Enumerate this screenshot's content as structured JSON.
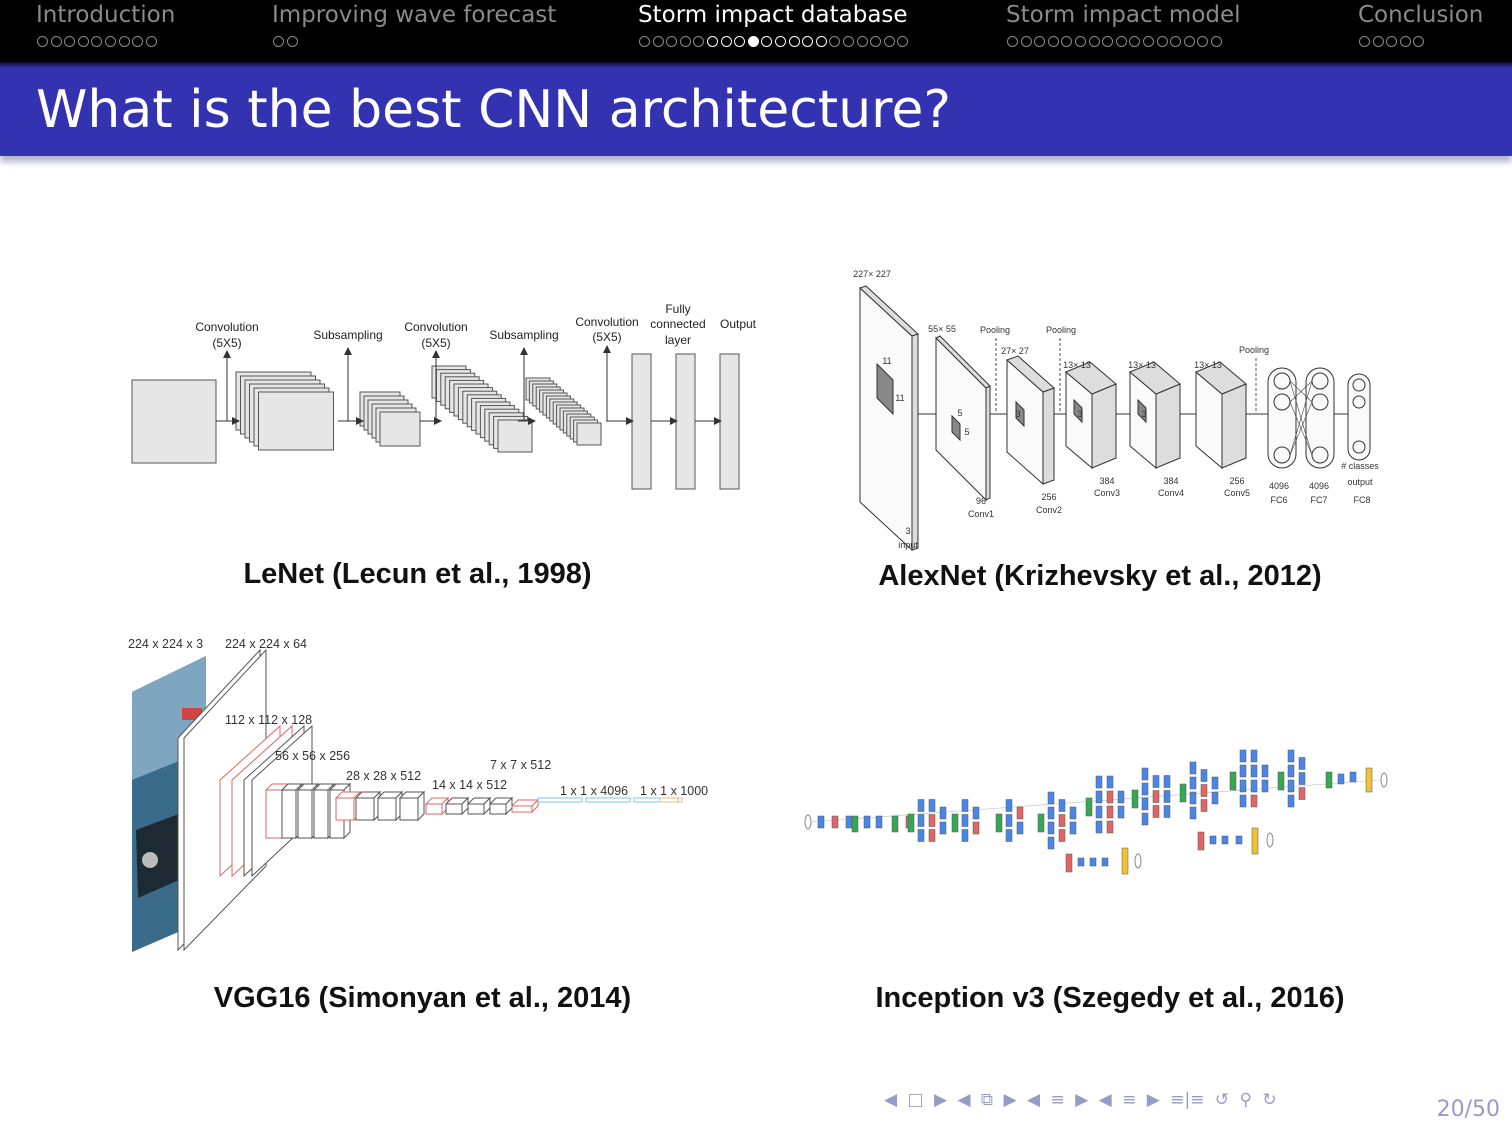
{
  "nav": {
    "sections": [
      {
        "title": "Introduction",
        "dots": 9,
        "filled": -1,
        "bright": 0,
        "active": false
      },
      {
        "title": "Improving wave forecast",
        "dots": 2,
        "filled": -1,
        "bright": 0,
        "active": false
      },
      {
        "title": "Storm impact database",
        "dots": 20,
        "filled": 8,
        "bright": 10,
        "active": true
      },
      {
        "title": "Storm impact model",
        "dots": 16,
        "filled": -1,
        "bright": 0,
        "active": false
      },
      {
        "title": "Conclusion",
        "dots": 5,
        "filled": -1,
        "bright": 0,
        "active": false
      }
    ]
  },
  "slide": {
    "title": "What is the best CNN architecture?",
    "page": "20/50"
  },
  "figures": {
    "lenet": {
      "caption": "LeNet (Lecun et al., 1998)",
      "labels": {
        "conv1a": "Convolution",
        "conv1b": "(5X5)",
        "sub1": "Subsampling",
        "conv2a": "Convolution",
        "conv2b": "(5X5)",
        "sub2": "Subsampling",
        "conv3a": "Convolution",
        "conv3b": "(5X5)",
        "fc_a": "Fully",
        "fc_b": "connected",
        "fc_c": "layer",
        "output": "Output"
      }
    },
    "alexnet": {
      "caption": "AlexNet (Krizhevsky et al., 2012)",
      "labels": {
        "in_size": "227× 227",
        "k11a": "11",
        "k11b": "11",
        "in_ch": "3",
        "input": "input",
        "c1_size": "55× 55",
        "k5a": "5",
        "k5b": "5",
        "c1_ch": "96",
        "c1": "Conv1",
        "pool1": "Pooling",
        "pool2": "Pooling",
        "pool3": "Pooling",
        "c2_size": "27× 27",
        "c2_ch": "256",
        "c2": "Conv2",
        "c3_size": "13× 13",
        "c3_ch": "384",
        "c3": "Conv3",
        "c4_size": "13× 13",
        "c4_ch": "384",
        "c4": "Conv4",
        "c5_size": "13× 13",
        "c5_ch": "256",
        "c5": "Conv5",
        "k3": "3",
        "fc6_n": "4096",
        "fc6": "FC6",
        "fc7_n": "4096",
        "fc7": "FC7",
        "classes": "# classes",
        "out": "output",
        "fc8": "FC8"
      }
    },
    "vgg": {
      "caption": "VGG16 (Simonyan et al., 2014)",
      "labels": {
        "l1": "224 x 224 x 3",
        "l2": "224 x 224 x 64",
        "l3": "112 x 112 x 128",
        "l4": "56 x 56 x 256",
        "l5": "28 x 28 x 512",
        "l6": "14 x 14 x 512",
        "l7": "7 x 7 x 512",
        "l8": "1 x 1 x 4096",
        "l9": "1 x 1 x 1000"
      }
    },
    "inception": {
      "caption": "Inception v3 (Szegedy et al., 2016)"
    }
  },
  "colors": {
    "navbar": "#000000",
    "titlebar": "#3333b2",
    "inc_blue": "#4a86e8",
    "inc_red": "#e06666",
    "inc_green": "#34a853",
    "inc_yellow": "#f1c232"
  },
  "footer_icons": [
    "nav-left-arrow-icon",
    "frame-icon",
    "nav-right-arrow-icon",
    "nav-left-arrow-icon",
    "subsection-icon",
    "nav-right-arrow-icon",
    "nav-left-arrow-icon",
    "section-icon",
    "nav-right-arrow-icon",
    "nav-left-arrow-icon",
    "align-icon",
    "nav-right-arrow-icon",
    "undo-icon",
    "search-icon",
    "redo-icon"
  ]
}
